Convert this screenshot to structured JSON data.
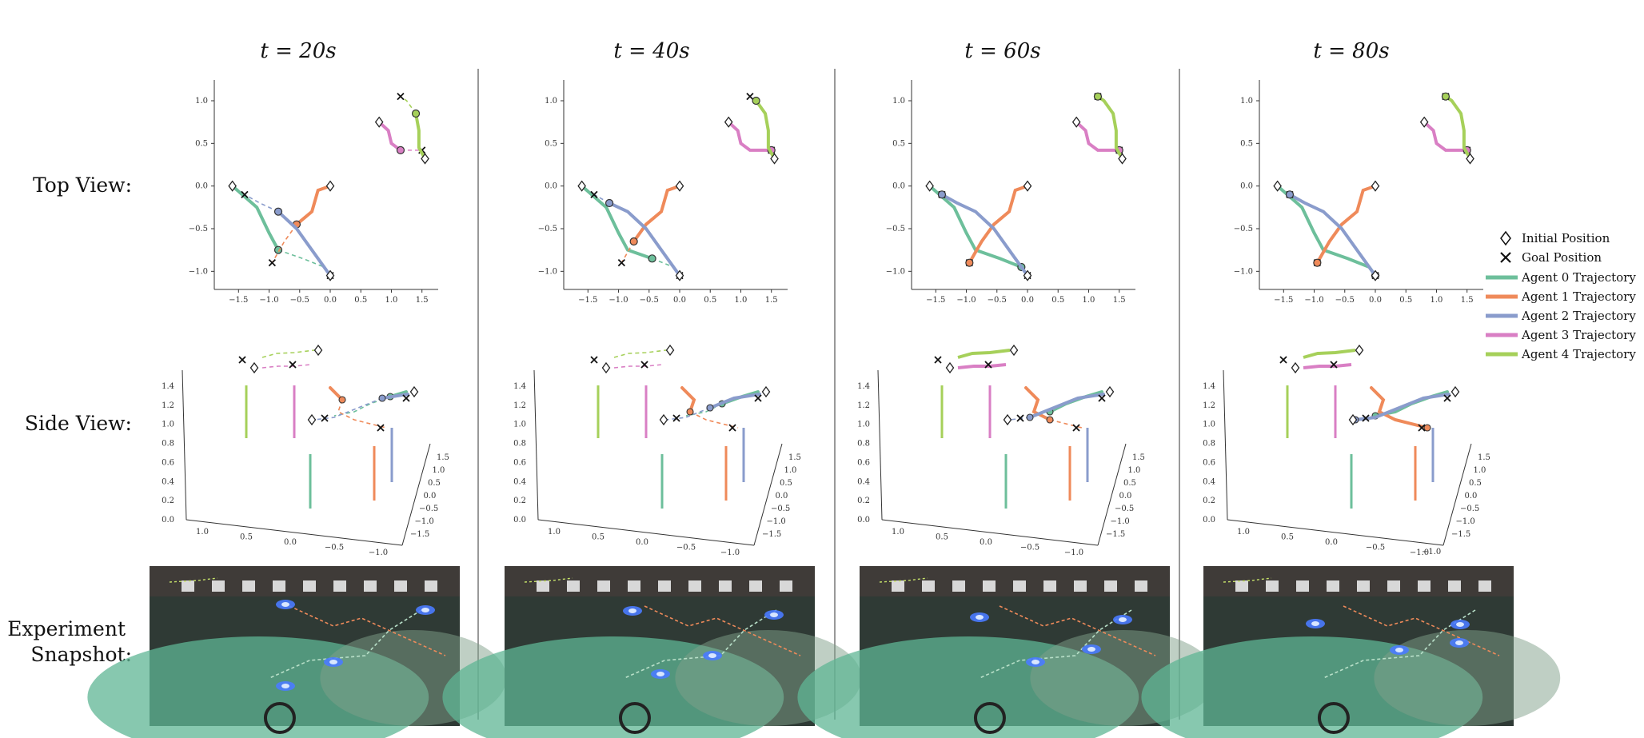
{
  "columns": [
    {
      "title": "t = 20s"
    },
    {
      "title": "t = 40s"
    },
    {
      "title": "t = 60s"
    },
    {
      "title": "t = 80s"
    }
  ],
  "row_labels": {
    "top": "Top View:",
    "side": "Side View:",
    "snapshot_1": "Experiment",
    "snapshot_2": "Snapshot:"
  },
  "legend": {
    "initial": "Initial Position",
    "goal": "Goal Position",
    "agents": [
      {
        "label": "Agent 0 Trajectory",
        "color": "#6dbf9b"
      },
      {
        "label": "Agent 1 Trajectory",
        "color": "#ef8a5a"
      },
      {
        "label": "Agent 2 Trajectory",
        "color": "#8a9ccc"
      },
      {
        "label": "Agent 3 Trajectory",
        "color": "#d97fc4"
      },
      {
        "label": "Agent 4 Trajectory",
        "color": "#a6d05a"
      }
    ]
  },
  "top_axes": {
    "x_ticks": [
      "−1.5",
      "−1.0",
      "−0.5",
      "0.0",
      "0.5",
      "1.0",
      "1.5"
    ],
    "y_ticks": [
      "1.0",
      "0.5",
      "0.0",
      "−0.5",
      "−1.0"
    ]
  },
  "side_axes": {
    "z_ticks": [
      "1.4",
      "1.2",
      "1.0",
      "0.8",
      "0.6",
      "0.4",
      "0.2",
      "0.0"
    ],
    "x_ticks": [
      "1.0",
      "0.5",
      "0.0",
      "−0.5",
      "−1.0"
    ],
    "y_ticks": [
      "1.5",
      "1.0",
      "0.5",
      "0.0",
      "−0.5",
      "−1.0",
      "−1.5"
    ]
  },
  "extra_tick": "−1.0",
  "chart_data": {
    "type": "line",
    "xlim": [
      -1.7,
      1.7
    ],
    "ylim": [
      -1.1,
      1.15
    ],
    "agents": [
      {
        "initial": [
          -1.6,
          0.0
        ],
        "goal": [
          0.0,
          -1.05
        ],
        "path": [
          [
            -1.6,
            0.0
          ],
          [
            -1.2,
            -0.25
          ],
          [
            -1.0,
            -0.55
          ],
          [
            -0.85,
            -0.75
          ],
          [
            -0.45,
            -0.85
          ],
          [
            -0.1,
            -0.95
          ],
          [
            0.0,
            -1.05
          ]
        ]
      },
      {
        "initial": [
          0.0,
          0.0
        ],
        "goal": [
          -0.95,
          -0.9
        ],
        "path": [
          [
            0.0,
            0.0
          ],
          [
            -0.2,
            -0.05
          ],
          [
            -0.3,
            -0.3
          ],
          [
            -0.55,
            -0.45
          ],
          [
            -0.75,
            -0.65
          ],
          [
            -0.95,
            -0.9
          ]
        ]
      },
      {
        "initial": [
          0.0,
          -1.05
        ],
        "goal": [
          -1.4,
          -0.1
        ],
        "path": [
          [
            0.0,
            -1.05
          ],
          [
            -0.3,
            -0.75
          ],
          [
            -0.55,
            -0.5
          ],
          [
            -0.85,
            -0.3
          ],
          [
            -1.15,
            -0.2
          ],
          [
            -1.4,
            -0.1
          ]
        ]
      },
      {
        "initial": [
          0.8,
          0.75
        ],
        "goal": [
          1.5,
          0.42
        ],
        "path": [
          [
            0.8,
            0.75
          ],
          [
            0.95,
            0.65
          ],
          [
            1.0,
            0.5
          ],
          [
            1.15,
            0.42
          ],
          [
            1.5,
            0.42
          ]
        ]
      },
      {
        "initial": [
          1.55,
          0.32
        ],
        "goal": [
          1.15,
          1.05
        ],
        "path": [
          [
            1.55,
            0.32
          ],
          [
            1.45,
            0.45
          ],
          [
            1.45,
            0.65
          ],
          [
            1.4,
            0.85
          ],
          [
            1.25,
            1.0
          ],
          [
            1.15,
            1.05
          ]
        ]
      }
    ],
    "current_index": [
      3,
      4,
      5,
      6
    ]
  }
}
